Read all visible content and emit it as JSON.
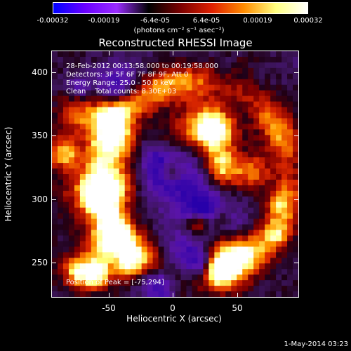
{
  "colorbar": {
    "ticks": [
      "-0.00032",
      "-0.00019",
      "-6.4e-05",
      "6.4e-05",
      "0.00019",
      "0.00032"
    ],
    "units": "(photons cm⁻² s⁻¹ asec⁻²)",
    "colors": [
      "#0000ff",
      "#6a00ff",
      "#9a2cff",
      "#000000",
      "#7a0000",
      "#e02000",
      "#ff8c00",
      "#ffff80",
      "#ffffff"
    ]
  },
  "plot": {
    "title": "Reconstructed RHESSI Image",
    "info_lines": [
      "28-Feb-2012 00:13:58.000 to 00:19:58.000",
      "Detectors: 3F 5F 6F 7F 8F 9F, Att 0",
      "Energy Range: 25.0 - 50.0 keV",
      "Clean    Total counts: 8.30E+03"
    ],
    "peak_label": "Position of Peak = [-75,294]"
  },
  "axes": {
    "xlabel": "Heliocentric X (arcsec)",
    "ylabel": "Heliocentric Y (arcsec)",
    "xticks": [
      "-50",
      "0",
      "50"
    ],
    "yticks": [
      "400",
      "350",
      "300",
      "250"
    ]
  },
  "footer": {
    "date": "1-May-2014 03:23"
  }
}
